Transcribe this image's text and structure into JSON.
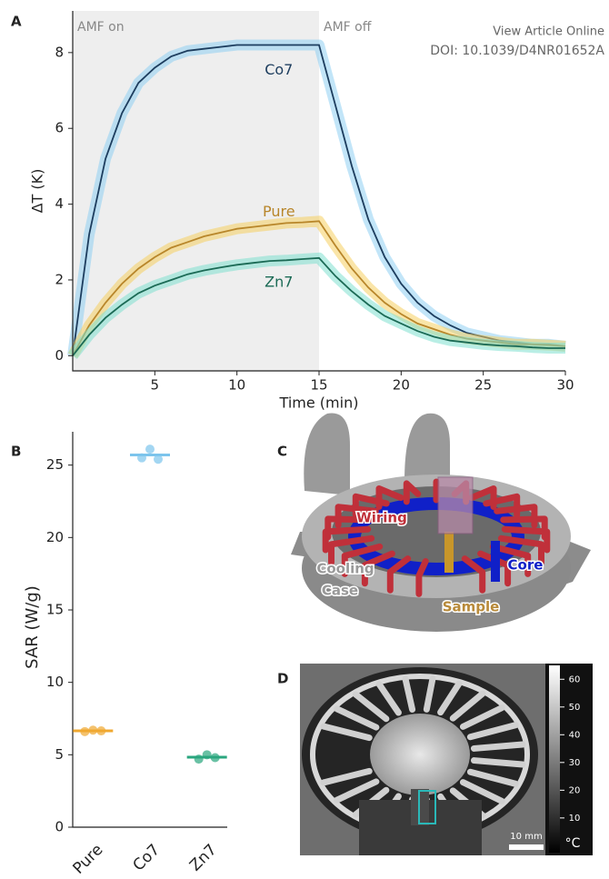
{
  "header": {
    "link": "View Article Online",
    "doi": "DOI: 10.1039/D4NR01652A"
  },
  "chart_data": [
    {
      "type": "line",
      "label": "A",
      "x_label": "Time (min)",
      "y_label": "ΔT (K)",
      "annotations": [
        "AMF on",
        "AMF off"
      ],
      "shade": [
        0,
        15
      ],
      "xlim": [
        0,
        30
      ],
      "xticks": [
        5,
        10,
        15,
        20,
        25,
        30
      ],
      "ylim": [
        -0.4,
        9.1
      ],
      "yticks": [
        0,
        2,
        4,
        6,
        8
      ],
      "x": [
        0,
        1,
        2,
        3,
        4,
        5,
        6,
        7,
        8,
        9,
        10,
        11,
        12,
        13,
        14,
        15,
        16,
        17,
        18,
        19,
        20,
        21,
        22,
        23,
        24,
        25,
        26,
        27,
        28,
        29,
        30
      ],
      "series": [
        {
          "name": "Co7",
          "color": "#1d3d5e",
          "band": "#8fd0f2",
          "values": [
            0,
            3.2,
            5.2,
            6.4,
            7.2,
            7.6,
            7.9,
            8.05,
            8.1,
            8.15,
            8.2,
            8.2,
            8.2,
            8.2,
            8.2,
            8.2,
            6.6,
            5.0,
            3.6,
            2.6,
            1.9,
            1.4,
            1.05,
            0.8,
            0.6,
            0.5,
            0.4,
            0.35,
            0.3,
            0.3,
            0.25
          ]
        },
        {
          "name": "Pure",
          "color": "#b8862a",
          "band": "#f5d060",
          "values": [
            0,
            0.8,
            1.4,
            1.9,
            2.3,
            2.6,
            2.85,
            3.0,
            3.15,
            3.25,
            3.35,
            3.4,
            3.45,
            3.5,
            3.52,
            3.55,
            2.9,
            2.3,
            1.8,
            1.4,
            1.1,
            0.85,
            0.7,
            0.55,
            0.45,
            0.4,
            0.35,
            0.3,
            0.3,
            0.28,
            0.25
          ]
        },
        {
          "name": "Zn7",
          "color": "#1b6a55",
          "band": "#7fe0d0",
          "values": [
            0,
            0.55,
            1.0,
            1.35,
            1.65,
            1.85,
            2.0,
            2.15,
            2.25,
            2.33,
            2.4,
            2.45,
            2.5,
            2.52,
            2.55,
            2.58,
            2.1,
            1.7,
            1.35,
            1.05,
            0.85,
            0.65,
            0.5,
            0.4,
            0.35,
            0.3,
            0.27,
            0.25,
            0.22,
            0.2,
            0.2
          ]
        }
      ]
    },
    {
      "type": "strip",
      "label": "B",
      "y_label": "SAR (W/g)",
      "categories": [
        "Pure",
        "Co7",
        "Zn7"
      ],
      "colors": [
        "#f0a830",
        "#7cc4ec",
        "#2aa67e"
      ],
      "values": [
        6.65,
        25.7,
        4.83
      ],
      "points": [
        [
          6.6,
          6.7,
          6.65
        ],
        [
          25.5,
          26.1,
          25.4
        ],
        [
          4.7,
          5.0,
          4.8
        ]
      ],
      "ylim": [
        0,
        27.3
      ],
      "yticks": [
        0,
        5,
        10,
        15,
        20,
        25
      ]
    }
  ],
  "diagram": {
    "label": "C",
    "labels": {
      "wiring": "Wiring",
      "core": "Core",
      "case": [
        "Cooling",
        "Case"
      ],
      "sample": "Sample"
    }
  },
  "image": {
    "label": "D",
    "scale_bar": "10 mm",
    "colorbar": {
      "unit": "°C",
      "clim": [
        -2.5,
        65
      ],
      "ticks": [
        10,
        20,
        30,
        40,
        50,
        60
      ]
    }
  }
}
